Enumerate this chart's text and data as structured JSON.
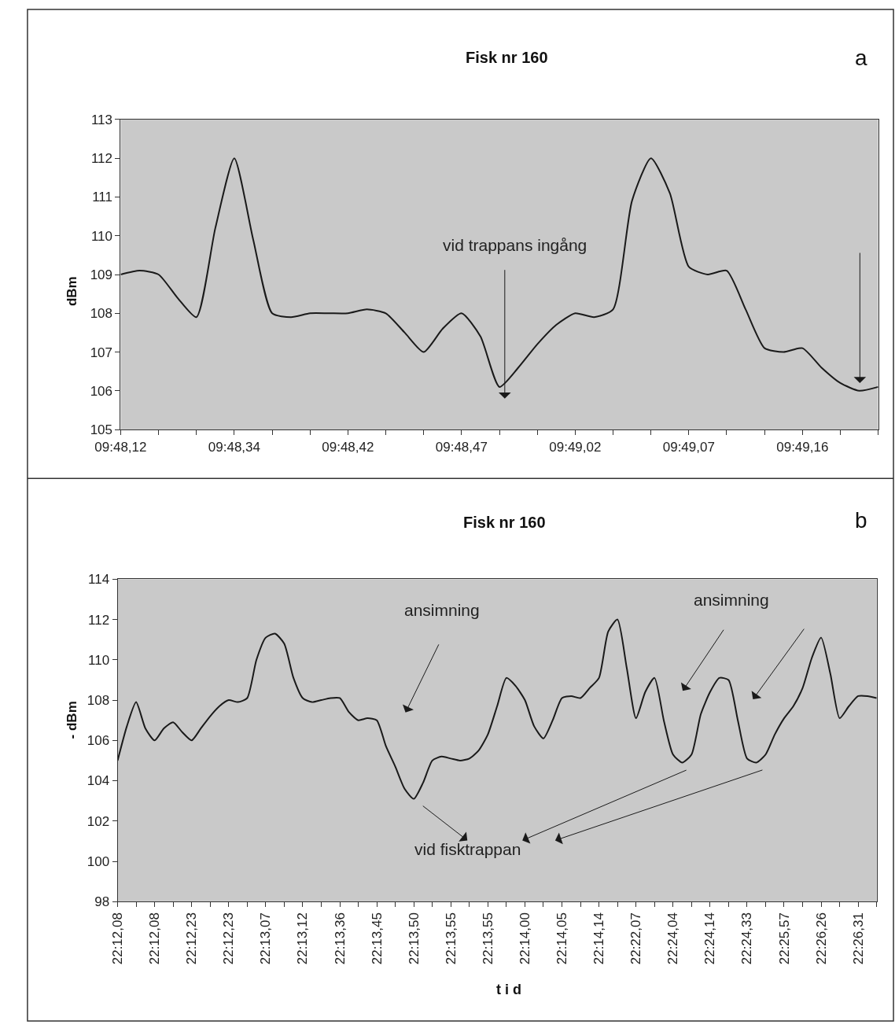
{
  "chart_data": [
    {
      "type": "line",
      "title": "Fisk nr 160",
      "ylabel": "dBm",
      "color": "#1a1a1a",
      "line_style": "solid",
      "grid": false,
      "categories": [
        "09:48,12",
        null,
        null,
        null,
        null,
        null,
        "09:48,34",
        null,
        null,
        null,
        null,
        null,
        "09:48,42",
        null,
        null,
        null,
        null,
        null,
        "09:48,47",
        null,
        null,
        null,
        null,
        null,
        "09:49,02",
        null,
        null,
        null,
        null,
        null,
        "09:49,07",
        null,
        null,
        null,
        null,
        null,
        "09:49,16",
        null,
        null,
        null,
        null
      ],
      "values": [
        109.0,
        109.1,
        109.0,
        108.4,
        107.9,
        110.2,
        112.0,
        109.9,
        108.0,
        107.9,
        108.0,
        108.0,
        108.0,
        108.1,
        108.0,
        107.5,
        107.0,
        107.6,
        108.0,
        107.4,
        106.1,
        106.6,
        107.2,
        107.7,
        108.0,
        107.9,
        108.1,
        110.9,
        112.0,
        111.1,
        109.2,
        109.0,
        109.1,
        108.1,
        107.1,
        107.0,
        107.1,
        106.6,
        106.2,
        106.0,
        106.1
      ],
      "ylim": [
        105,
        113
      ],
      "yticks": [
        105,
        106,
        107,
        108,
        109,
        110,
        111,
        112,
        113
      ],
      "annotations": [
        "a",
        "vid trappans ingång"
      ]
    },
    {
      "type": "line",
      "title": "Fisk nr 160",
      "ylabel": "- dBm",
      "xlabel": "t i d",
      "color": "#1a1a1a",
      "line_style": "solid",
      "grid": false,
      "categories": [
        "22:12,08",
        null,
        null,
        null,
        "22:12,08",
        null,
        null,
        null,
        "22:12,23",
        null,
        null,
        null,
        "22:12,23",
        null,
        null,
        null,
        "22:13,07",
        null,
        null,
        null,
        "22:13,12",
        null,
        null,
        null,
        "22:13,36",
        null,
        null,
        null,
        "22:13,45",
        null,
        null,
        null,
        "22:13,50",
        null,
        null,
        null,
        "22:13,55",
        null,
        null,
        null,
        "22:13,55",
        null,
        null,
        null,
        "22:14,00",
        null,
        null,
        null,
        "22:14,05",
        null,
        null,
        null,
        "22:14,14",
        null,
        null,
        null,
        "22:22,07",
        null,
        null,
        null,
        "22:24,04",
        null,
        null,
        null,
        "22:24,14",
        null,
        null,
        null,
        "22:24,33",
        null,
        null,
        null,
        "22:25,57",
        null,
        null,
        null,
        "22:26,26",
        null,
        null,
        null,
        "22:26,31",
        null,
        null
      ],
      "values": [
        105.0,
        106.7,
        107.9,
        106.6,
        106.0,
        106.6,
        106.9,
        106.4,
        106.0,
        106.6,
        107.2,
        107.7,
        108.0,
        107.9,
        108.1,
        110.0,
        111.1,
        111.3,
        110.8,
        109.1,
        108.1,
        107.9,
        108.0,
        108.1,
        108.1,
        107.4,
        107.0,
        107.1,
        107.0,
        105.7,
        104.7,
        103.6,
        103.1,
        103.9,
        105.0,
        105.2,
        105.1,
        105.0,
        105.1,
        105.5,
        106.3,
        107.7,
        109.1,
        108.7,
        108.0,
        106.7,
        106.1,
        107.0,
        108.1,
        108.2,
        108.1,
        108.6,
        109.1,
        111.4,
        112.0,
        109.6,
        107.1,
        108.4,
        109.1,
        107.0,
        105.3,
        104.9,
        105.3,
        107.3,
        108.4,
        109.1,
        109.0,
        107.0,
        105.1,
        104.9,
        105.3,
        106.3,
        107.1,
        107.7,
        108.6,
        110.1,
        111.1,
        109.3,
        107.1,
        107.7,
        108.2,
        108.2,
        108.1
      ],
      "ylim": [
        98,
        114
      ],
      "yticks": [
        98,
        100,
        102,
        104,
        106,
        108,
        110,
        112,
        114
      ],
      "annotations": [
        "b",
        "ansimning",
        "ansimning",
        "vid fisktrappan"
      ]
    }
  ]
}
